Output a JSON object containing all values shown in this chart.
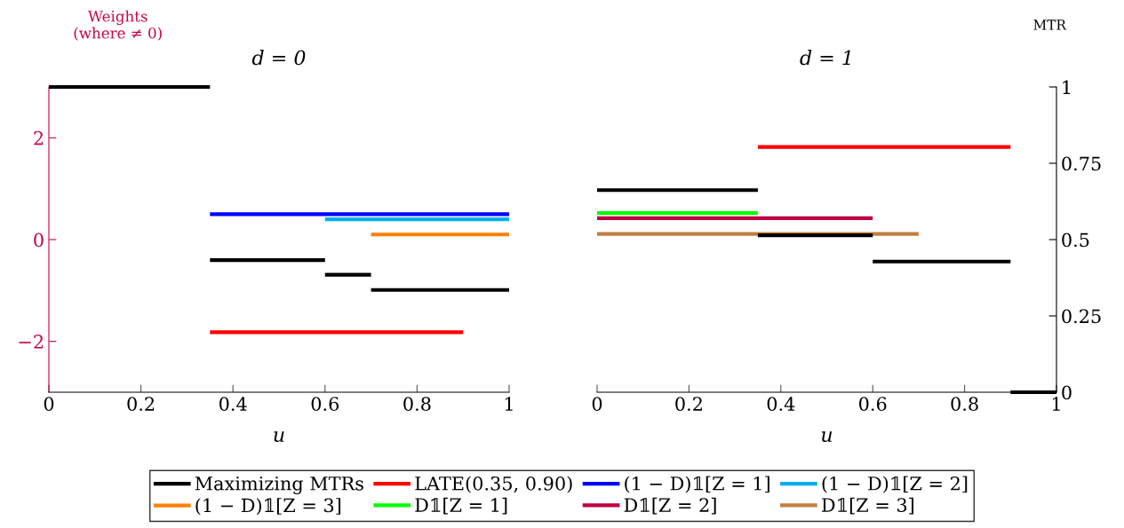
{
  "chart_data": [
    {
      "type": "line",
      "title": "d = 0",
      "xlabel": "u",
      "ylabel": "Weights\n(where ≠ 0)",
      "xlim": [
        0,
        1
      ],
      "xticks": [
        0,
        0.2,
        0.4,
        0.6,
        0.8,
        1
      ],
      "ylim": [
        -3,
        3
      ],
      "yticks": [
        {
          "value": -2,
          "label": "−2"
        },
        0,
        2
      ],
      "y2lim": [
        0,
        1
      ],
      "tick_labels": [
        "x",
        "y"
      ],
      "legend": "bottom",
      "grid": false,
      "series": [
        {
          "name": "Maximizing MTRs",
          "color": "#000000",
          "axis": "y2",
          "x": [
            0,
            0.35
          ],
          "values": [
            1,
            1
          ]
        },
        {
          "color": "#000000",
          "axis": "y2",
          "x": [
            0.35,
            0.6
          ],
          "values": [
            0.433,
            0.433
          ]
        },
        {
          "color": "#000000",
          "axis": "y2",
          "x": [
            0.6,
            0.7
          ],
          "values": [
            0.385,
            0.385
          ]
        },
        {
          "color": "#000000",
          "axis": "y2",
          "x": [
            0.7,
            1
          ],
          "values": [
            0.335,
            0.335
          ]
        },
        {
          "name": "LATE(0.35, 0.90)",
          "color": "#ff0000",
          "x": [
            0.35,
            0.9
          ],
          "values": [
            -1.82,
            -1.82
          ]
        },
        {
          "name": "(1 − D)𝟙[Z = 1]",
          "color": "#0000ff",
          "x": [
            0.35,
            1
          ],
          "values": [
            0.5,
            0.5
          ]
        },
        {
          "name": "(1 − D)𝟙[Z = 2]",
          "color": "#00aeef",
          "x": [
            0.6,
            1
          ],
          "values": [
            0.4,
            0.4
          ]
        },
        {
          "name": "(1 − D)𝟙[Z = 3]",
          "color": "#ff8000",
          "x": [
            0.7,
            1
          ],
          "values": [
            0.1,
            0.1
          ]
        }
      ]
    },
    {
      "type": "line",
      "title": "d = 1",
      "xlabel": "u",
      "y2label": "MTR",
      "xlim": [
        0,
        1
      ],
      "xticks": [
        0,
        0.2,
        0.4,
        0.6,
        0.8,
        1
      ],
      "ylim": [
        -3,
        3
      ],
      "y2lim": [
        0,
        1
      ],
      "y2ticks": [
        0,
        0.25,
        0.5,
        0.75,
        1
      ],
      "tick_labels": [
        "x",
        "y2"
      ],
      "legend": "bottom",
      "grid": false,
      "series": [
        {
          "color": "#000000",
          "axis": "y2",
          "x": [
            0,
            0.35
          ],
          "values": [
            0.662,
            0.662
          ]
        },
        {
          "color": "#000000",
          "axis": "y2",
          "x": [
            0.35,
            0.6
          ],
          "values": [
            0.514,
            0.514
          ]
        },
        {
          "color": "#000000",
          "axis": "y2",
          "x": [
            0.6,
            0.9
          ],
          "values": [
            0.428,
            0.428
          ]
        },
        {
          "color": "#000000",
          "axis": "y2",
          "x": [
            0.9,
            1
          ],
          "values": [
            0,
            0
          ]
        },
        {
          "color": "#ff0000",
          "x": [
            0.35,
            0.9
          ],
          "values": [
            1.82,
            1.82
          ]
        },
        {
          "name": "D𝟙[Z = 1]",
          "color": "#00ff00",
          "x": [
            0,
            0.35
          ],
          "values": [
            0.52,
            0.52
          ]
        },
        {
          "name": "D𝟙[Z = 2]",
          "color": "#bf0040",
          "x": [
            0,
            0.6
          ],
          "values": [
            0.42,
            0.42
          ]
        },
        {
          "name": "D𝟙[Z = 3]",
          "color": "#bf8040",
          "x": [
            0,
            0.7
          ],
          "values": [
            0.11,
            0.11
          ]
        }
      ]
    }
  ]
}
